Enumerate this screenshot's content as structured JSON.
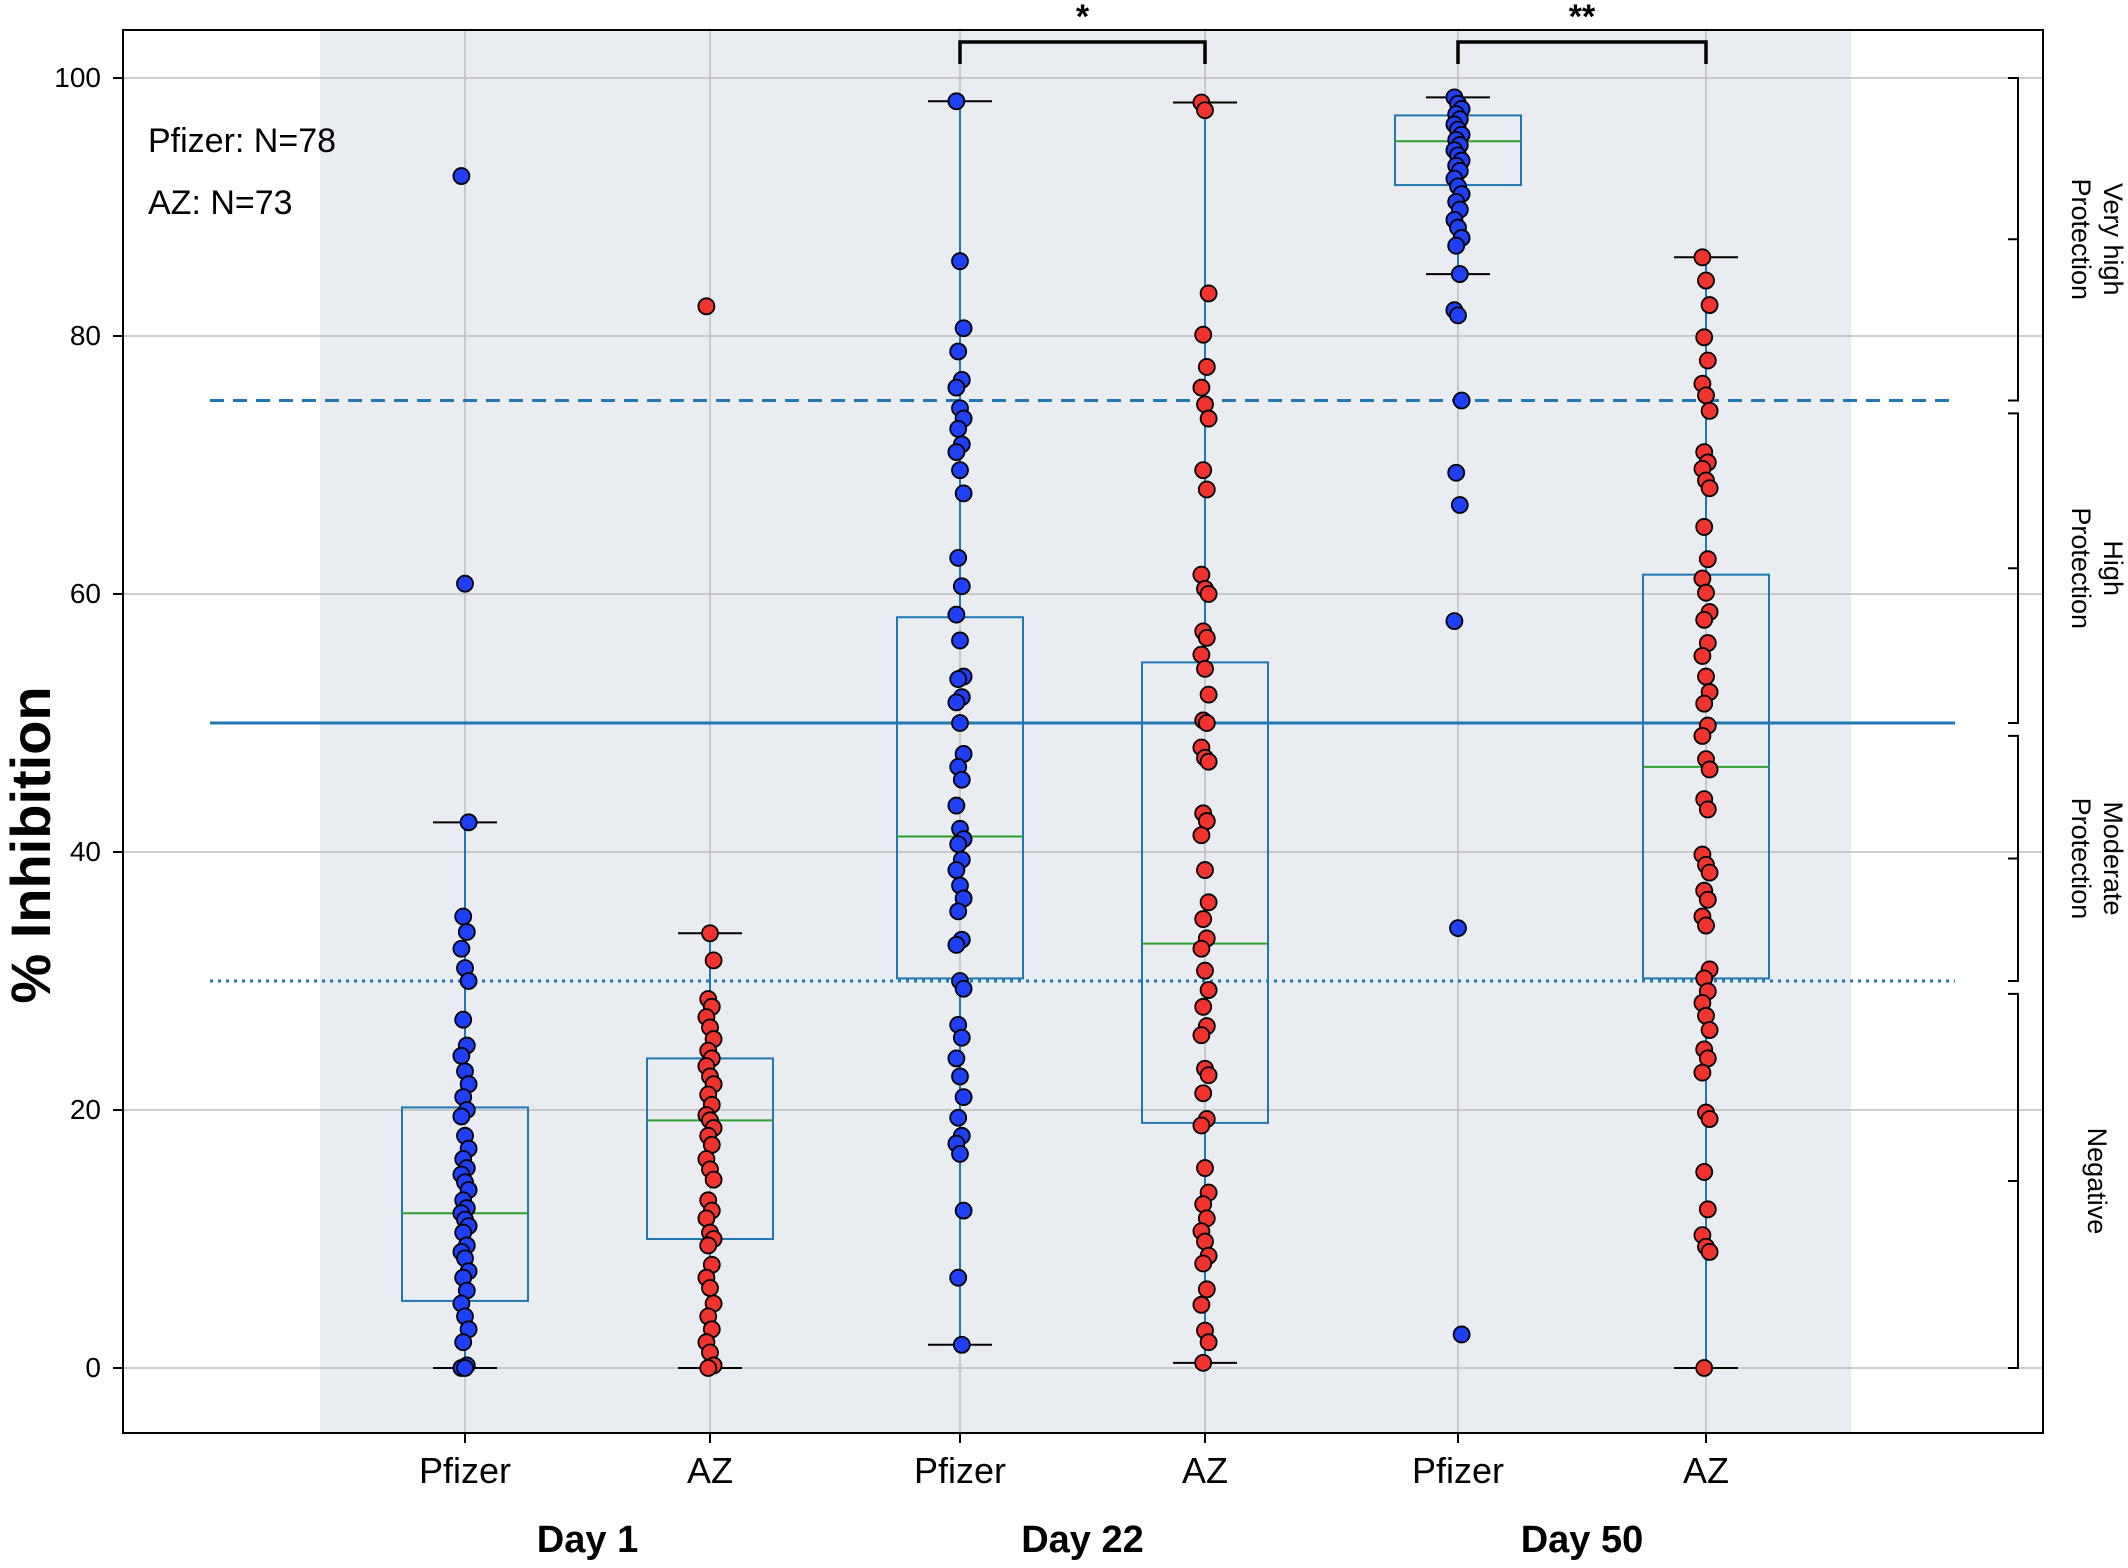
{
  "chart_data": {
    "type": "box",
    "ylabel": "% Inhibition",
    "ylim": [
      -5,
      101.5
    ],
    "yticks": [
      0,
      20,
      40,
      60,
      80,
      100
    ],
    "grid": true,
    "annotation_lines": [
      "Pfizer: N=78",
      "AZ: N=73"
    ],
    "colors": {
      "pfizer": "#1f3ff5",
      "az": "#f0332e",
      "box": "#1f77b4",
      "median": "#2ca02c",
      "threshold": "#1f77b4",
      "day_band": "#e9ecf1",
      "grid": "#bdbdbd"
    },
    "thresholds": [
      {
        "value": 75,
        "style": "dashed"
      },
      {
        "value": 50,
        "style": "solid"
      },
      {
        "value": 30,
        "style": "dotted"
      }
    ],
    "protection_levels": [
      {
        "label_lines": [
          "Very high",
          "Protection"
        ],
        "range": [
          75,
          100
        ]
      },
      {
        "label_lines": [
          "High",
          "Protection"
        ],
        "range": [
          50,
          74
        ]
      },
      {
        "label_lines": [
          "Moderate",
          "Protection"
        ],
        "range": [
          30,
          49
        ]
      },
      {
        "label_lines": [
          "Negative"
        ],
        "range": [
          0,
          29
        ]
      }
    ],
    "day_groups": [
      {
        "label": "Day 1",
        "members": [
          0,
          1
        ]
      },
      {
        "label": "Day 22",
        "members": [
          2,
          3
        ]
      },
      {
        "label": "Day 50",
        "members": [
          4,
          5
        ]
      }
    ],
    "significance": [
      {
        "between": [
          2,
          3
        ],
        "label": "*"
      },
      {
        "between": [
          4,
          5
        ],
        "label": "**"
      }
    ],
    "groups": [
      {
        "label": "Pfizer",
        "vaccine": "pfizer",
        "q1": 5.2,
        "median": 12,
        "q3": 20.2,
        "whisker_low": 0,
        "whisker_high": 42.3,
        "points": [
          92.4,
          60.8,
          42.3,
          35,
          33.8,
          32.5,
          31,
          30,
          27,
          25,
          24.2,
          23,
          22,
          21,
          20,
          19.5,
          18,
          17,
          16.2,
          15.5,
          15,
          14.4,
          13.8,
          13,
          12.4,
          12,
          11.5,
          11,
          10.5,
          9.5,
          9,
          8.5,
          7.5,
          7,
          6,
          5,
          4,
          3,
          2,
          0.2,
          0,
          0
        ]
      },
      {
        "label": "AZ",
        "vaccine": "az",
        "q1": 10,
        "median": 19.2,
        "q3": 24,
        "whisker_low": 0,
        "whisker_high": 33.7,
        "points": [
          82.3,
          33.7,
          31.6,
          28.6,
          28,
          27.2,
          26.4,
          25.5,
          24.6,
          24,
          23.4,
          22.6,
          22,
          21.2,
          20.4,
          19.6,
          19.2,
          18.6,
          18,
          17.3,
          16.2,
          15.4,
          14.6,
          13,
          12.2,
          11.6,
          10.5,
          10,
          9.5,
          8,
          7,
          6.2,
          5,
          4,
          3,
          2,
          1.2,
          0.2,
          0
        ]
      },
      {
        "label": "Pfizer",
        "vaccine": "pfizer",
        "q1": 30.2,
        "median": 41.2,
        "q3": 58.2,
        "whisker_low": 1.8,
        "whisker_high": 98.2,
        "points": [
          98.2,
          85.8,
          80.6,
          78.8,
          76.6,
          76,
          74.4,
          73.6,
          72.8,
          71.6,
          71,
          69.6,
          67.8,
          62.8,
          60.6,
          58.4,
          56.4,
          53.6,
          53.4,
          52,
          51.6,
          50,
          47.6,
          46.6,
          45.6,
          43.6,
          41.8,
          41,
          40.6,
          39.4,
          38.6,
          37.4,
          36.4,
          35.4,
          33.2,
          32.8,
          30,
          29.4,
          26.6,
          25.6,
          24,
          22.6,
          21,
          19.4,
          18,
          17.4,
          16.6,
          12.2,
          7,
          1.8
        ]
      },
      {
        "label": "AZ",
        "vaccine": "az",
        "q1": 19,
        "median": 32.9,
        "q3": 54.7,
        "whisker_low": 0.4,
        "whisker_high": 98.1,
        "points": [
          98.1,
          97.5,
          83.3,
          80.1,
          77.6,
          76,
          74.7,
          73.6,
          69.6,
          68.1,
          61.5,
          60.4,
          60,
          57.1,
          56.6,
          55.3,
          54.2,
          52.2,
          50.2,
          50,
          48.1,
          47.3,
          47,
          43,
          42.4,
          41.3,
          38.6,
          36.1,
          34.8,
          33.3,
          32.5,
          30.8,
          29.3,
          28,
          26.5,
          25.8,
          23.2,
          22.7,
          21.3,
          19.3,
          18.8,
          15.5,
          13.6,
          12.7,
          11.6,
          10.6,
          9.8,
          8.7,
          8.1,
          6.1,
          4.9,
          2.9,
          2,
          0.4
        ]
      },
      {
        "label": "Pfizer",
        "vaccine": "pfizer",
        "q1": 91.7,
        "median": 95.1,
        "q3": 97.1,
        "whisker_low": 84.8,
        "whisker_high": 98.5,
        "points": [
          98.5,
          98,
          97.6,
          97.2,
          96.8,
          96.4,
          96,
          95.6,
          95.2,
          94.8,
          94.4,
          94,
          93.6,
          93.2,
          92.8,
          92.2,
          91.6,
          91,
          90.4,
          89.8,
          89,
          88.4,
          87.6,
          87,
          84.8,
          82,
          81.6,
          75,
          69.4,
          66.9,
          57.9,
          34.1,
          2.6
        ]
      },
      {
        "label": "AZ",
        "vaccine": "az",
        "q1": 30.2,
        "median": 46.6,
        "q3": 61.5,
        "whisker_low": 0,
        "whisker_high": 86.1,
        "points": [
          86.1,
          84.3,
          82.4,
          79.9,
          78.1,
          76.3,
          75.4,
          74.2,
          71,
          70.2,
          69.7,
          68.8,
          68.2,
          65.2,
          62.7,
          61.2,
          60.1,
          58.6,
          58,
          56.2,
          55.2,
          53.6,
          52.4,
          51.5,
          49.8,
          49,
          47.2,
          46.4,
          44.1,
          43.3,
          39.8,
          39,
          38.4,
          37,
          36.3,
          35,
          34.3,
          30.9,
          30.2,
          29.2,
          28.3,
          27.3,
          26.2,
          24.7,
          24,
          22.9,
          19.8,
          19.3,
          15.2,
          12.3,
          10.3,
          9.4,
          9,
          0
        ]
      }
    ]
  }
}
